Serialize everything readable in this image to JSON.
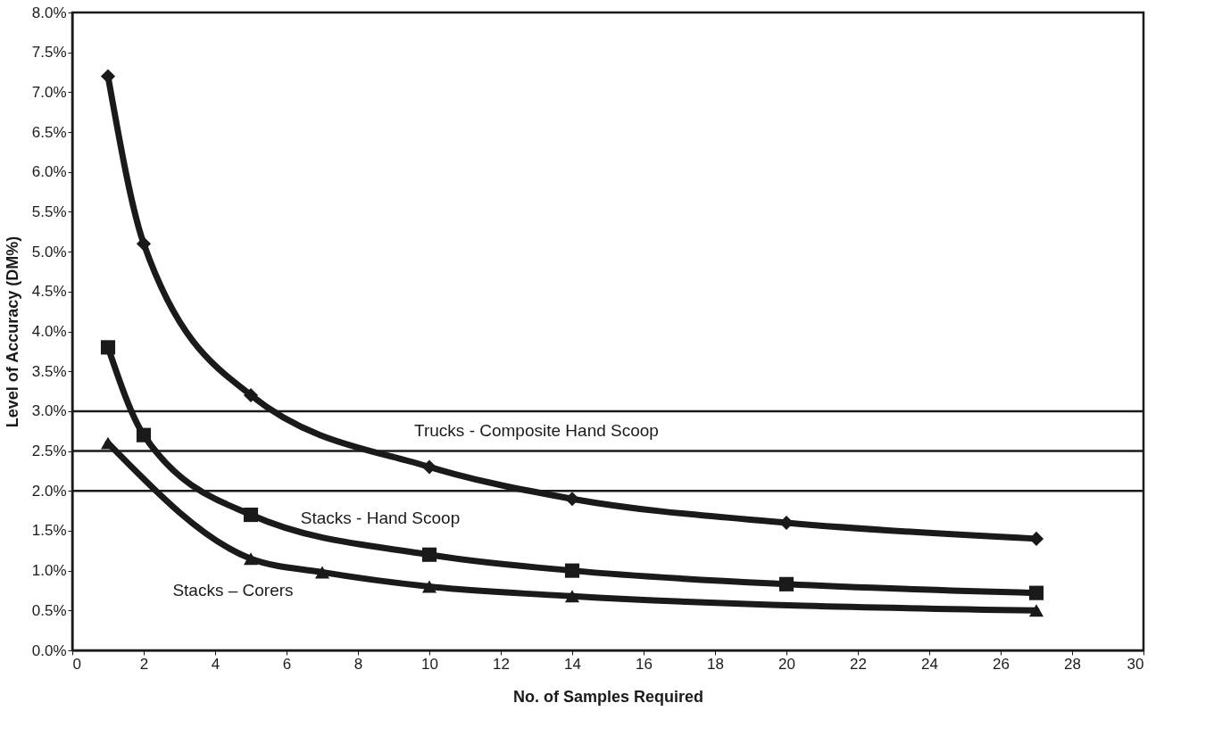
{
  "chart_data": {
    "type": "line",
    "xlabel": "No. of Samples Required",
    "ylabel": "Level of Accuracy (DM%)",
    "xlim": [
      0,
      30
    ],
    "xticks": [
      0,
      2,
      4,
      6,
      8,
      10,
      12,
      14,
      16,
      18,
      20,
      22,
      24,
      26,
      28,
      30
    ],
    "ylim": [
      0,
      8
    ],
    "yticks": [
      {
        "value": 0,
        "label": "0.0%"
      },
      {
        "value": 0.5,
        "label": "0.5%"
      },
      {
        "value": 1,
        "label": "1.0%"
      },
      {
        "value": 1.5,
        "label": "1.5%"
      },
      {
        "value": 2,
        "label": "2.0%"
      },
      {
        "value": 2.5,
        "label": "2.5%"
      },
      {
        "value": 3,
        "label": "3.0%"
      },
      {
        "value": 3.5,
        "label": "3.5%"
      },
      {
        "value": 4,
        "label": "4.0%"
      },
      {
        "value": 4.5,
        "label": "4.5%"
      },
      {
        "value": 5,
        "label": "5.0%"
      },
      {
        "value": 5.5,
        "label": "5.5%"
      },
      {
        "value": 6,
        "label": "6.0%"
      },
      {
        "value": 6.5,
        "label": "6.5%"
      },
      {
        "value": 7,
        "label": "7.0%"
      },
      {
        "value": 7.5,
        "label": "7.5%"
      },
      {
        "value": 8,
        "label": "8.0%"
      }
    ],
    "grid": false,
    "legend": false,
    "line_style": "solid",
    "series": [
      {
        "name": "Trucks - Composite Hand Scoop",
        "color": "#1a1a1a",
        "marker": "diamond",
        "x": [
          1,
          2,
          5,
          10,
          14,
          20,
          27
        ],
        "values": [
          7.2,
          5.1,
          3.2,
          2.3,
          1.9,
          1.6,
          1.4
        ]
      },
      {
        "name": "Stacks - Hand Scoop",
        "color": "#1a1a1a",
        "marker": "square",
        "x": [
          1,
          2,
          5,
          10,
          14,
          20,
          27
        ],
        "values": [
          3.8,
          2.7,
          1.7,
          1.2,
          1.0,
          0.83,
          0.72
        ]
      },
      {
        "name": "Stacks – Corers",
        "color": "#1a1a1a",
        "marker": "triangle",
        "x": [
          1,
          5,
          7,
          10,
          14,
          27
        ],
        "values": [
          2.6,
          1.15,
          0.98,
          0.8,
          0.68,
          0.5
        ]
      }
    ],
    "ref_lines": [
      {
        "axis": "y",
        "value": 3.0,
        "color": "#1a1a1a"
      },
      {
        "axis": "y",
        "value": 2.5,
        "color": "#1a1a1a"
      },
      {
        "axis": "y",
        "value": 2.0,
        "color": "#1a1a1a"
      }
    ]
  }
}
